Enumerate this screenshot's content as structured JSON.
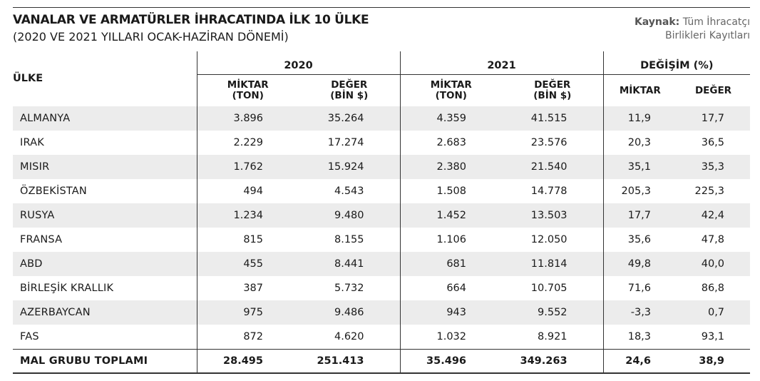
{
  "title": "VANALAR VE ARMATÜRLER İHRACATINDA İLK 10 ÜLKE",
  "subtitle": "(2020 VE 2021 YILLARI OCAK-HAZİRAN DÖNEMİ)",
  "source": {
    "label": "Kaynak:",
    "line1": "Tüm İhracatçı",
    "line2": "Birlikleri Kayıtları"
  },
  "table": {
    "country_header": "ÜLKE",
    "group_2020": "2020",
    "group_2021": "2021",
    "group_change": "DEĞİŞİM (%)",
    "sub_miktar_1": "MİKTAR",
    "sub_miktar_2": "(TON)",
    "sub_deger_1": "DEĞER",
    "sub_deger_2": "(BİN $)",
    "sub_change_miktar": "MİKTAR",
    "sub_change_deger": "DEĞER",
    "rows": [
      {
        "country": "ALMANYA",
        "m2020": "3.896",
        "d2020": "35.264",
        "m2021": "4.359",
        "d2021": "41.515",
        "cm": "11,9",
        "cd": "17,7"
      },
      {
        "country": "IRAK",
        "m2020": "2.229",
        "d2020": "17.274",
        "m2021": "2.683",
        "d2021": "23.576",
        "cm": "20,3",
        "cd": "36,5"
      },
      {
        "country": "MISIR",
        "m2020": "1.762",
        "d2020": "15.924",
        "m2021": "2.380",
        "d2021": "21.540",
        "cm": "35,1",
        "cd": "35,3"
      },
      {
        "country": "ÖZBEKİSTAN",
        "m2020": "494",
        "d2020": "4.543",
        "m2021": "1.508",
        "d2021": "14.778",
        "cm": "205,3",
        "cd": "225,3"
      },
      {
        "country": "RUSYA",
        "m2020": "1.234",
        "d2020": "9.480",
        "m2021": "1.452",
        "d2021": "13.503",
        "cm": "17,7",
        "cd": "42,4"
      },
      {
        "country": "FRANSA",
        "m2020": "815",
        "d2020": "8.155",
        "m2021": "1.106",
        "d2021": "12.050",
        "cm": "35,6",
        "cd": "47,8"
      },
      {
        "country": "ABD",
        "m2020": "455",
        "d2020": "8.441",
        "m2021": "681",
        "d2021": "11.814",
        "cm": "49,8",
        "cd": "40,0"
      },
      {
        "country": "BİRLEŞİK KRALLIK",
        "m2020": "387",
        "d2020": "5.732",
        "m2021": "664",
        "d2021": "10.705",
        "cm": "71,6",
        "cd": "86,8"
      },
      {
        "country": "AZERBAYCAN",
        "m2020": "975",
        "d2020": "9.486",
        "m2021": "943",
        "d2021": "9.552",
        "cm": "-3,3",
        "cd": "0,7"
      },
      {
        "country": "FAS",
        "m2020": "872",
        "d2020": "4.620",
        "m2021": "1.032",
        "d2021": "8.921",
        "cm": "18,3",
        "cd": "93,1"
      }
    ],
    "total": {
      "country": "MAL GRUBU TOPLAMI",
      "m2020": "28.495",
      "d2020": "251.413",
      "m2021": "35.496",
      "d2021": "349.263",
      "cm": "24,6",
      "cd": "38,9"
    },
    "colors": {
      "shade": "#ececec",
      "rule": "#333333"
    }
  }
}
